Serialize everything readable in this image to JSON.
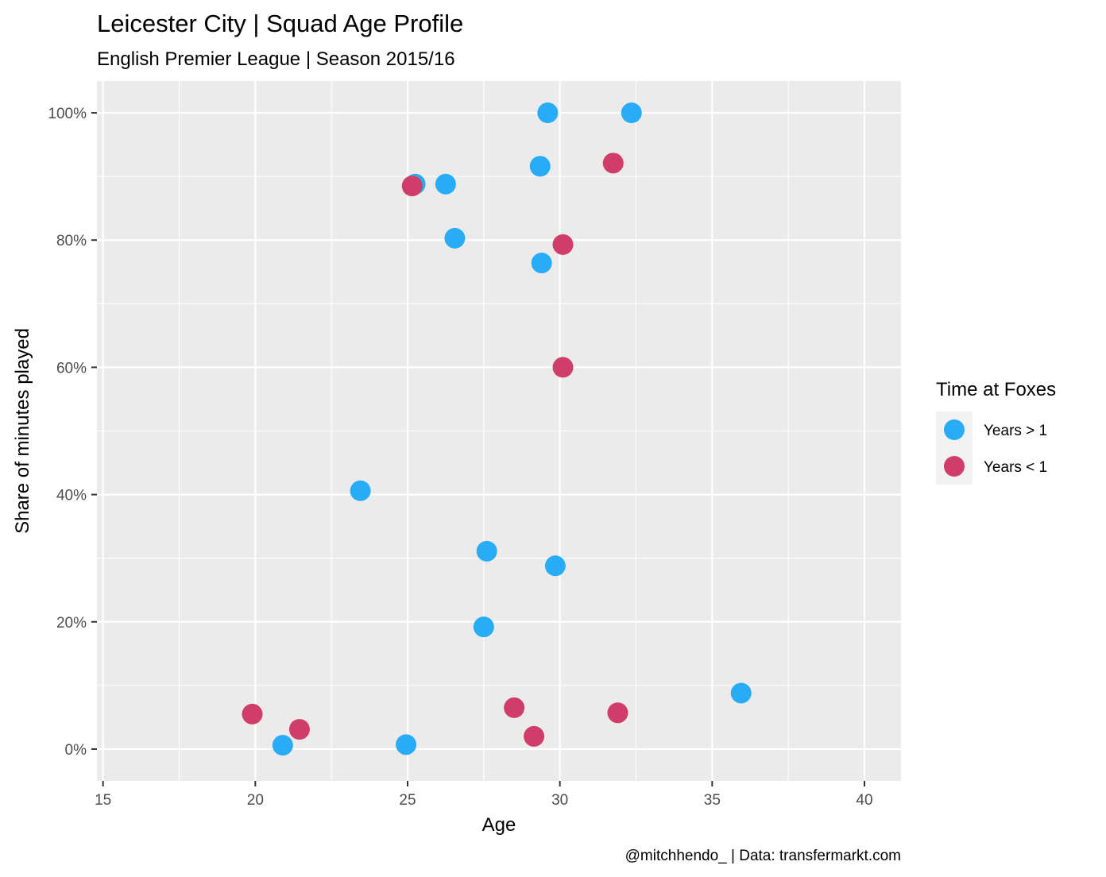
{
  "chart_data": {
    "type": "scatter",
    "title": "Leicester City | Squad Age Profile",
    "subtitle": "English Premier League | Season 2015/16",
    "xlabel": "Age",
    "ylabel": "Share of minutes played",
    "caption": "@mitchhendo_ | Data: transfermarkt.com",
    "xlim": [
      14.8,
      41.2
    ],
    "ylim": [
      -0.05,
      1.05
    ],
    "x_ticks": [
      15,
      20,
      25,
      30,
      35,
      40
    ],
    "x_tick_labels": [
      "15",
      "20",
      "25",
      "30",
      "35",
      "40"
    ],
    "y_ticks": [
      0,
      0.2,
      0.4,
      0.6,
      0.8,
      1.0
    ],
    "y_tick_labels": [
      "0%",
      "20%",
      "40%",
      "60%",
      "80%",
      "100%"
    ],
    "grid": true,
    "legend": {
      "title": "Time at Foxes",
      "placement": "right"
    },
    "series": [
      {
        "name": "Years > 1",
        "color": "#29acf6",
        "points": [
          {
            "x": 29.6,
            "y": 1.0
          },
          {
            "x": 32.35,
            "y": 1.0
          },
          {
            "x": 29.35,
            "y": 0.916
          },
          {
            "x": 25.25,
            "y": 0.888
          },
          {
            "x": 26.25,
            "y": 0.888
          },
          {
            "x": 26.55,
            "y": 0.803
          },
          {
            "x": 29.4,
            "y": 0.764
          },
          {
            "x": 23.45,
            "y": 0.406
          },
          {
            "x": 27.6,
            "y": 0.311
          },
          {
            "x": 29.85,
            "y": 0.288
          },
          {
            "x": 27.5,
            "y": 0.192
          },
          {
            "x": 35.95,
            "y": 0.088
          },
          {
            "x": 20.9,
            "y": 0.006
          },
          {
            "x": 24.95,
            "y": 0.007
          }
        ]
      },
      {
        "name": "Years < 1",
        "color": "#d03d6b",
        "points": [
          {
            "x": 31.75,
            "y": 0.921
          },
          {
            "x": 25.15,
            "y": 0.885
          },
          {
            "x": 30.1,
            "y": 0.793
          },
          {
            "x": 30.1,
            "y": 0.6
          },
          {
            "x": 19.9,
            "y": 0.055
          },
          {
            "x": 21.45,
            "y": 0.031
          },
          {
            "x": 28.5,
            "y": 0.065
          },
          {
            "x": 31.9,
            "y": 0.057
          },
          {
            "x": 29.15,
            "y": 0.02
          }
        ]
      }
    ]
  }
}
